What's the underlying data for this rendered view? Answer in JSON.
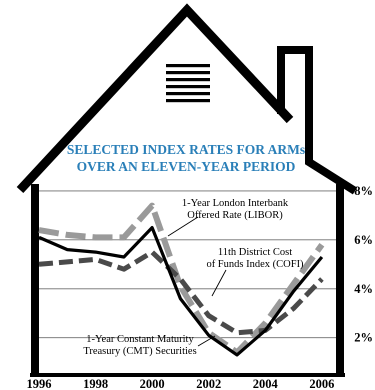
{
  "chart_data": {
    "type": "line",
    "title_lines": [
      "SELECTED INDEX RATES FOR ARMs",
      "OVER AN ELEVEN-YEAR PERIOD"
    ],
    "x_ticks": [
      "1996",
      "1998",
      "2000",
      "2002",
      "2004",
      "2006"
    ],
    "y_ticks": [
      "2%",
      "4%",
      "6%",
      "8%"
    ],
    "xlim": [
      1996,
      2006.5
    ],
    "ylim": [
      0.6,
      8.2
    ],
    "grid": true,
    "x": [
      1996,
      1997,
      1998,
      1999,
      2000,
      2001,
      2002,
      2003,
      2004,
      2005,
      2006
    ],
    "series": [
      {
        "name": "1-Year London Interbank Offered Rate (LIBOR)",
        "style": "dashed",
        "color": "#9a9a9a",
        "values": [
          6.4,
          6.2,
          6.1,
          6.1,
          7.4,
          4.1,
          2.2,
          1.4,
          2.6,
          4.2,
          5.8
        ]
      },
      {
        "name": "11th District Cost of Funds Index (COFI)",
        "style": "dashed",
        "color": "#4a4a4a",
        "values": [
          5.0,
          5.1,
          5.2,
          4.8,
          5.5,
          4.4,
          2.9,
          2.2,
          2.3,
          3.2,
          4.4
        ]
      },
      {
        "name": "1-Year Constant Maturity Treasury (CMT) Securities",
        "style": "solid",
        "color": "#000000",
        "values": [
          6.1,
          5.6,
          5.5,
          5.3,
          6.5,
          3.6,
          2.1,
          1.3,
          2.3,
          3.9,
          5.3
        ]
      }
    ],
    "annotations": [
      {
        "lines": [
          "1-Year London Interbank",
          "Offered Rate (LIBOR)"
        ],
        "target": 0
      },
      {
        "lines": [
          "11th District Cost",
          "of Funds Index (COFI)"
        ],
        "target": 1
      },
      {
        "lines": [
          "1-Year Constant Maturity",
          "Treasury (CMT) Securities"
        ],
        "target": 2
      }
    ]
  }
}
